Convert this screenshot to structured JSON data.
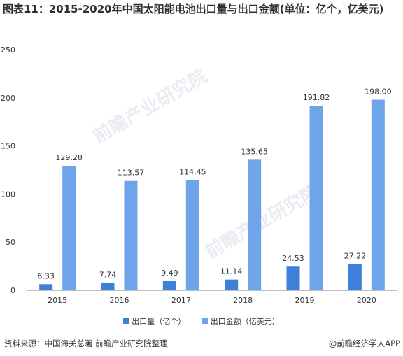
{
  "title": "图表11：2015-2020年中国太阳能电池出口量与出口金额(单位：亿个，亿美元)",
  "source": "资料来源：中国海关总署 前瞻产业研究院整理",
  "brand": "@前瞻经济学人APP",
  "watermark": "前瞻产业研究院",
  "colors": {
    "volume": "#3d7fd9",
    "value": "#6ea5ea"
  },
  "chart_data": {
    "type": "bar",
    "categories": [
      "2015",
      "2016",
      "2017",
      "2018",
      "2019",
      "2020"
    ],
    "series": [
      {
        "name": "出口量（亿个）",
        "values": [
          6.33,
          7.74,
          9.49,
          11.14,
          24.53,
          27.22
        ]
      },
      {
        "name": "出口金额（亿美元）",
        "values": [
          129.28,
          113.57,
          114.45,
          135.65,
          191.82,
          198.0
        ]
      }
    ],
    "value_labels": [
      [
        "6.33",
        "7.74",
        "9.49",
        "11.14",
        "24.53",
        "27.22"
      ],
      [
        "129.28",
        "113.57",
        "114.45",
        "135.65",
        "191.82",
        "198.00"
      ]
    ],
    "yticks": [
      "0",
      "50",
      "100",
      "150",
      "200",
      "250"
    ],
    "ylim": [
      0,
      250
    ],
    "grid": false,
    "legend": "bottom"
  }
}
